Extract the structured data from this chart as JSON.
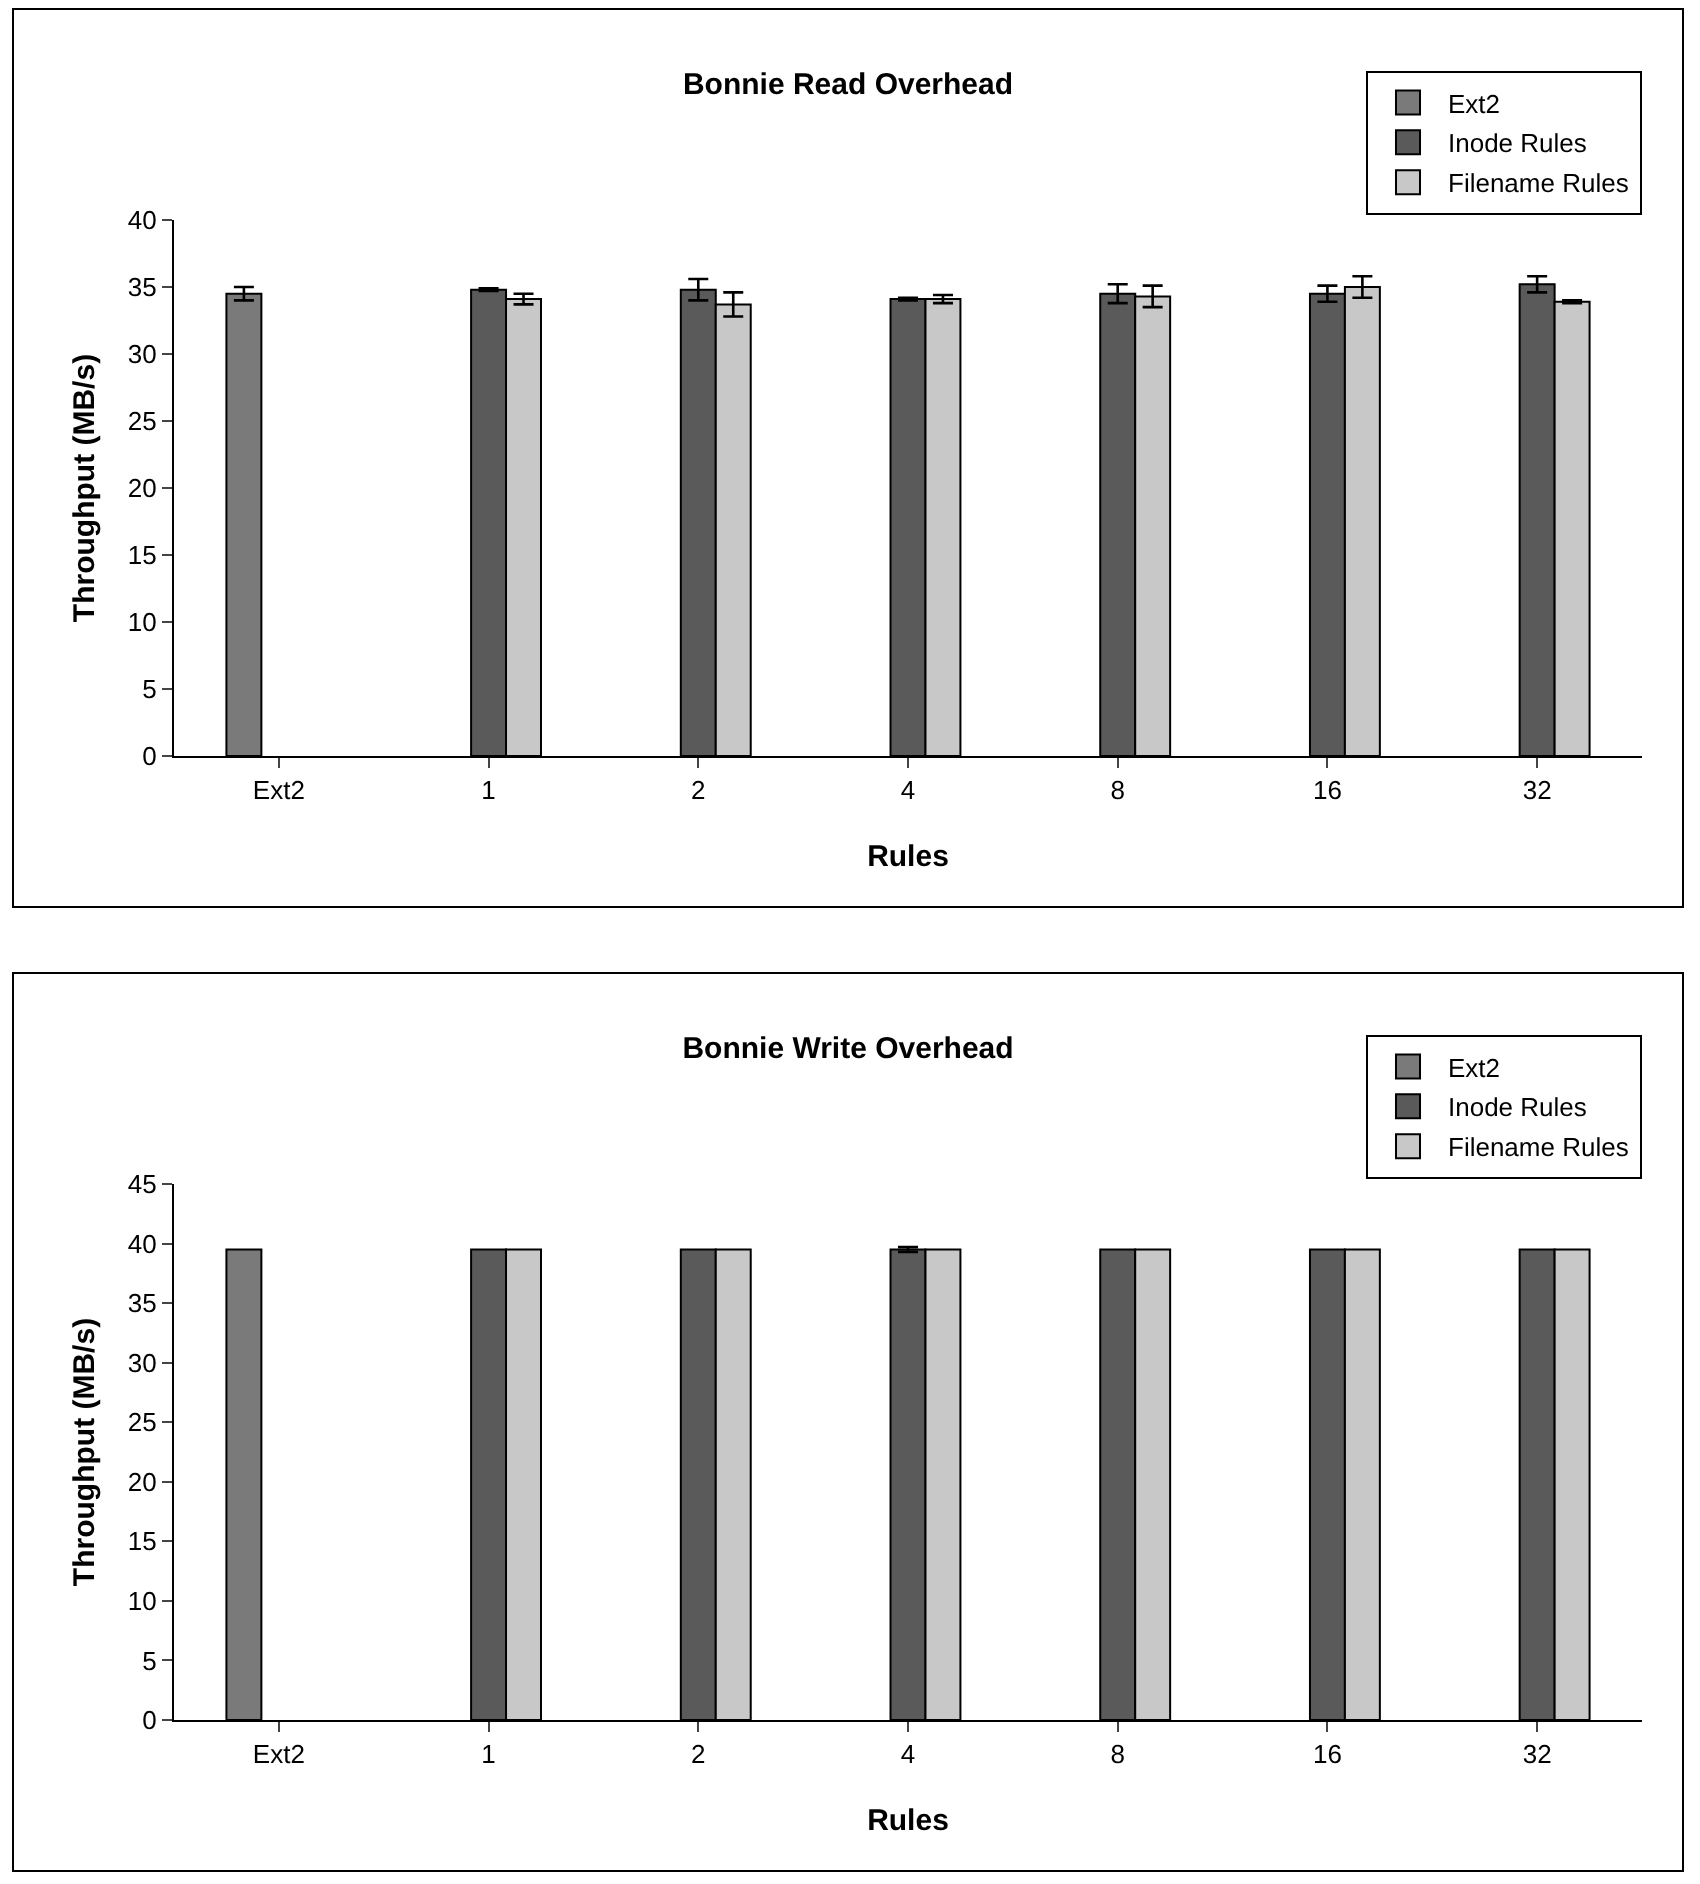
{
  "chart_data": [
    {
      "type": "bar",
      "title": "Bonnie Read Overhead",
      "xlabel": "Rules",
      "ylabel": "Throughput (MB/s)",
      "categories": [
        "Ext2",
        "1",
        "2",
        "4",
        "8",
        "16",
        "32"
      ],
      "ylim": [
        0,
        40
      ],
      "yticks": [
        0,
        5,
        10,
        15,
        20,
        25,
        30,
        35,
        40
      ],
      "grid": false,
      "legend": "top right",
      "series": [
        {
          "name": "Ext2",
          "color": "#7a7a7a",
          "values": [
            34.5,
            null,
            null,
            null,
            null,
            null,
            null
          ],
          "errors": [
            0.5,
            null,
            null,
            null,
            null,
            null,
            null
          ]
        },
        {
          "name": "Inode Rules",
          "color": "#5a5a5a",
          "values": [
            null,
            34.8,
            34.8,
            34.1,
            34.5,
            34.5,
            35.2
          ],
          "errors": [
            null,
            0.1,
            0.8,
            0.1,
            0.7,
            0.6,
            0.6
          ]
        },
        {
          "name": "Filename Rules",
          "color": "#c8c8c8",
          "values": [
            null,
            34.1,
            33.7,
            34.1,
            34.3,
            35.0,
            33.9
          ],
          "errors": [
            null,
            0.4,
            0.9,
            0.3,
            0.8,
            0.8,
            0.1
          ]
        }
      ]
    },
    {
      "type": "bar",
      "title": "Bonnie Write Overhead",
      "xlabel": "Rules",
      "ylabel": "Throughput (MB/s)",
      "categories": [
        "Ext2",
        "1",
        "2",
        "4",
        "8",
        "16",
        "32"
      ],
      "ylim": [
        0,
        45
      ],
      "yticks": [
        0,
        5,
        10,
        15,
        20,
        25,
        30,
        35,
        40,
        45
      ],
      "grid": false,
      "legend": "top right",
      "series": [
        {
          "name": "Ext2",
          "color": "#7a7a7a",
          "values": [
            39.5,
            null,
            null,
            null,
            null,
            null,
            null
          ]
        },
        {
          "name": "Inode Rules",
          "color": "#5a5a5a",
          "values": [
            null,
            39.5,
            39.5,
            39.5,
            39.5,
            39.5,
            39.5
          ],
          "errors": [
            null,
            null,
            null,
            0.2,
            null,
            null,
            null
          ]
        },
        {
          "name": "Filename Rules",
          "color": "#c8c8c8",
          "values": [
            null,
            39.5,
            39.5,
            39.5,
            39.5,
            39.5,
            39.5
          ]
        }
      ]
    }
  ]
}
